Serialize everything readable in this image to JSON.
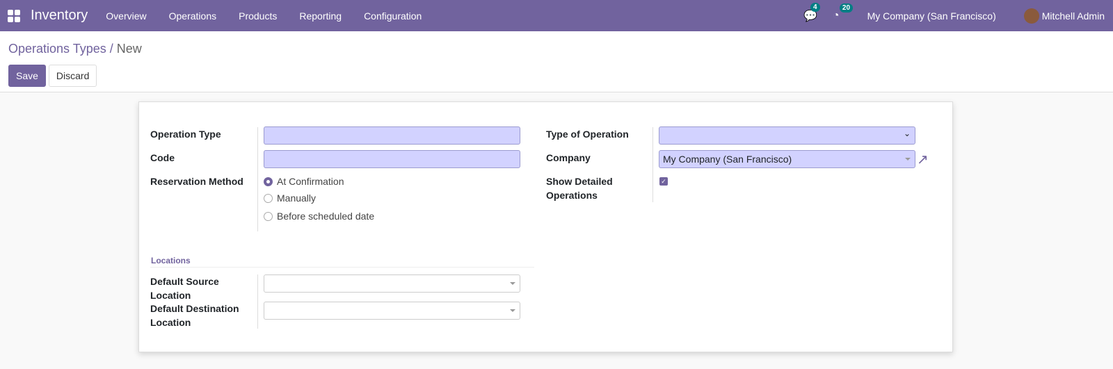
{
  "nav": {
    "app": "Inventory",
    "menus": [
      "Overview",
      "Operations",
      "Products",
      "Reporting",
      "Configuration"
    ],
    "messages_count": "4",
    "activities_count": "20",
    "company": "My Company (San Francisco)",
    "user": "Mitchell Admin",
    "color": "#71639e"
  },
  "breadcrumb": {
    "parent": "Operations Types",
    "sep": "/",
    "current": "New"
  },
  "buttons": {
    "save": "Save",
    "discard": "Discard"
  },
  "form": {
    "operation_type": {
      "label": "Operation Type",
      "value": ""
    },
    "code": {
      "label": "Code",
      "value": ""
    },
    "reservation": {
      "label": "Reservation Method",
      "options": [
        "At Confirmation",
        "Manually",
        "Before scheduled date"
      ],
      "selected": "At Confirmation"
    },
    "type_of_operation": {
      "label": "Type of Operation",
      "value": ""
    },
    "company": {
      "label": "Company",
      "value": "My Company (San Francisco)"
    },
    "show_detailed": {
      "label1": "Show Detailed",
      "label2": "Operations",
      "checked": true
    },
    "locations": {
      "title": "Locations",
      "source_label1": "Default Source",
      "source_label2": "Location",
      "dest_label1": "Default Destination",
      "dest_label2": "Location"
    }
  }
}
